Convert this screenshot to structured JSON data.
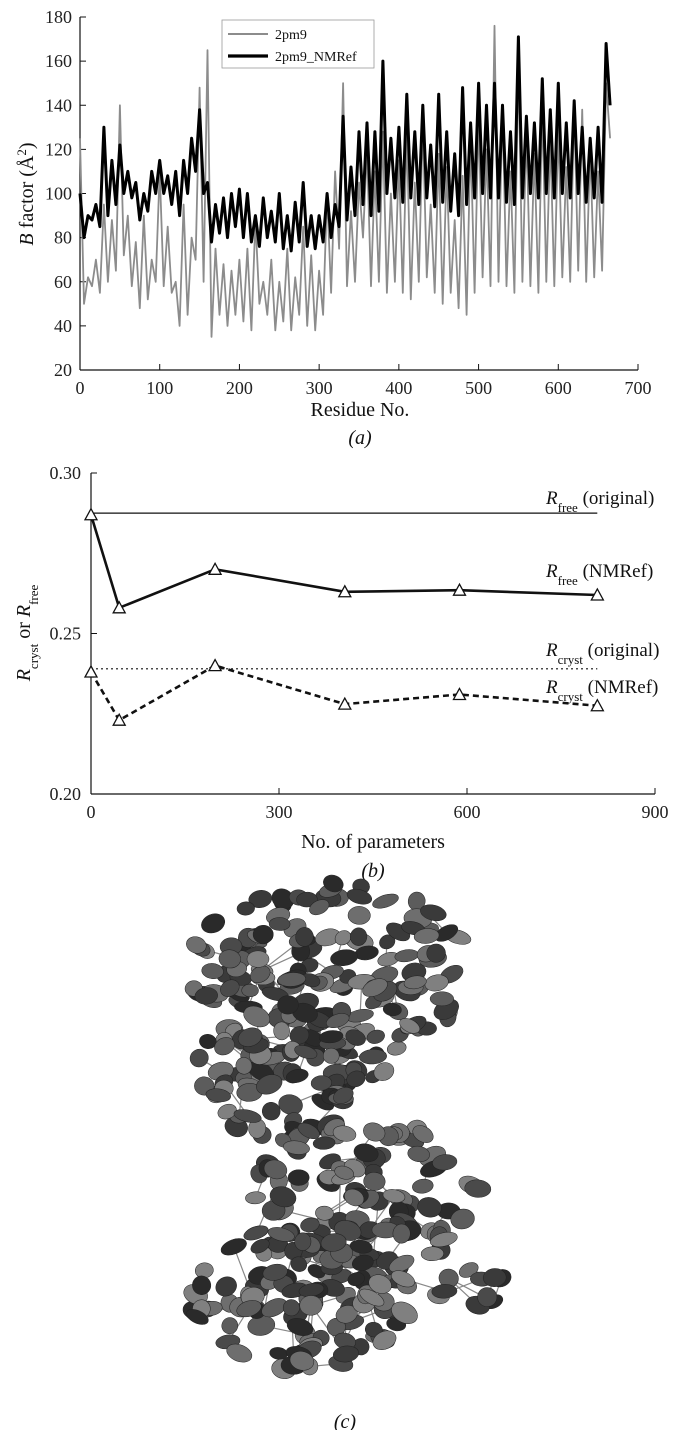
{
  "chart_data": [
    {
      "type": "line",
      "panel": "(a)",
      "xlabel": "Residue No.",
      "ylabel": "B factor (Å²)",
      "xlim": [
        0,
        700
      ],
      "ylim": [
        20,
        180
      ],
      "xticks": [
        0,
        100,
        200,
        300,
        400,
        500,
        600,
        700
      ],
      "yticks": [
        20,
        40,
        60,
        80,
        100,
        120,
        140,
        160,
        180
      ],
      "legend_position": "top-left",
      "series": [
        {
          "name": "2pm9",
          "color": "#8c8c8c",
          "x": [
            0,
            5,
            10,
            15,
            20,
            25,
            30,
            35,
            40,
            45,
            50,
            55,
            60,
            65,
            70,
            75,
            80,
            85,
            90,
            95,
            100,
            105,
            110,
            115,
            120,
            125,
            130,
            135,
            140,
            145,
            150,
            155,
            160,
            165,
            170,
            175,
            180,
            185,
            190,
            195,
            200,
            205,
            210,
            215,
            220,
            225,
            230,
            235,
            240,
            245,
            250,
            255,
            260,
            265,
            270,
            275,
            280,
            285,
            290,
            295,
            300,
            305,
            310,
            315,
            320,
            325,
            330,
            335,
            340,
            345,
            350,
            355,
            360,
            365,
            370,
            375,
            380,
            385,
            390,
            395,
            400,
            405,
            410,
            415,
            420,
            425,
            430,
            435,
            440,
            445,
            450,
            455,
            460,
            465,
            470,
            475,
            480,
            485,
            490,
            495,
            500,
            505,
            510,
            515,
            520,
            525,
            530,
            535,
            540,
            545,
            550,
            555,
            560,
            565,
            570,
            575,
            580,
            585,
            590,
            595,
            600,
            605,
            610,
            615,
            620,
            625,
            630,
            635,
            640,
            645,
            650,
            655,
            660,
            665
          ],
          "values": [
            125,
            50,
            62,
            58,
            70,
            55,
            95,
            60,
            88,
            65,
            140,
            72,
            90,
            58,
            78,
            48,
            90,
            52,
            70,
            60,
            110,
            58,
            85,
            55,
            60,
            40,
            95,
            45,
            80,
            70,
            148,
            60,
            165,
            35,
            75,
            45,
            68,
            40,
            65,
            45,
            70,
            42,
            75,
            38,
            88,
            50,
            60,
            45,
            70,
            38,
            60,
            42,
            75,
            38,
            62,
            45,
            85,
            40,
            72,
            38,
            65,
            45,
            100,
            55,
            110,
            75,
            150,
            58,
            92,
            60,
            105,
            80,
            120,
            58,
            110,
            60,
            128,
            55,
            100,
            60,
            115,
            55,
            128,
            52,
            105,
            60,
            132,
            62,
            95,
            55,
            118,
            50,
            112,
            55,
            88,
            48,
            108,
            45,
            125,
            55,
            135,
            62,
            120,
            58,
            176,
            60,
            140,
            58,
            110,
            55,
            160,
            60,
            128,
            58,
            118,
            55,
            140,
            60,
            125,
            58,
            130,
            62,
            112,
            60,
            140,
            65,
            138,
            60,
            120,
            62,
            110,
            65,
            150,
            125
          ]
        },
        {
          "name": "2pm9_NMRef",
          "color": "#000000",
          "x": [
            0,
            5,
            10,
            15,
            20,
            25,
            30,
            35,
            40,
            45,
            50,
            55,
            60,
            65,
            70,
            75,
            80,
            85,
            90,
            95,
            100,
            105,
            110,
            115,
            120,
            125,
            130,
            135,
            140,
            145,
            150,
            155,
            160,
            165,
            170,
            175,
            180,
            185,
            190,
            195,
            200,
            205,
            210,
            215,
            220,
            225,
            230,
            235,
            240,
            245,
            250,
            255,
            260,
            265,
            270,
            275,
            280,
            285,
            290,
            295,
            300,
            305,
            310,
            315,
            320,
            325,
            330,
            335,
            340,
            345,
            350,
            355,
            360,
            365,
            370,
            375,
            380,
            385,
            390,
            395,
            400,
            405,
            410,
            415,
            420,
            425,
            430,
            435,
            440,
            445,
            450,
            455,
            460,
            465,
            470,
            475,
            480,
            485,
            490,
            495,
            500,
            505,
            510,
            515,
            520,
            525,
            530,
            535,
            540,
            545,
            550,
            555,
            560,
            565,
            570,
            575,
            580,
            585,
            590,
            595,
            600,
            605,
            610,
            615,
            620,
            625,
            630,
            635,
            640,
            645,
            650,
            655,
            660,
            665
          ],
          "values": [
            100,
            80,
            90,
            88,
            95,
            85,
            130,
            90,
            115,
            95,
            122,
            100,
            110,
            98,
            105,
            88,
            100,
            92,
            110,
            100,
            115,
            100,
            108,
            95,
            110,
            90,
            115,
            100,
            125,
            110,
            138,
            100,
            105,
            78,
            95,
            82,
            98,
            80,
            100,
            85,
            102,
            80,
            100,
            78,
            90,
            76,
            98,
            80,
            92,
            78,
            100,
            75,
            90,
            74,
            96,
            78,
            105,
            76,
            90,
            75,
            90,
            78,
            100,
            80,
            95,
            85,
            135,
            88,
            112,
            90,
            128,
            95,
            132,
            90,
            128,
            92,
            160,
            100,
            125,
            98,
            130,
            96,
            145,
            98,
            128,
            95,
            140,
            98,
            122,
            94,
            145,
            96,
            128,
            92,
            118,
            90,
            148,
            95,
            132,
            98,
            150,
            100,
            140,
            98,
            150,
            98,
            140,
            96,
            128,
            95,
            171,
            98,
            135,
            100,
            132,
            98,
            152,
            100,
            138,
            98,
            150,
            100,
            132,
            98,
            142,
            100,
            130,
            96,
            125,
            98,
            130,
            96,
            168,
            140
          ]
        }
      ]
    },
    {
      "type": "line",
      "panel": "(b)",
      "xlabel": "No. of parameters",
      "ylabel": "Rcryst or Rfree",
      "xlim": [
        0,
        900
      ],
      "ylim": [
        0.2,
        0.3
      ],
      "xticks": [
        0,
        300,
        600,
        900
      ],
      "yticks": [
        "0.20",
        "0.25",
        "0.30"
      ],
      "series": [
        {
          "name": "Rfree (NMRef)",
          "style": "solid",
          "marker": "triangle",
          "x": [
            0,
            45,
            198,
            405,
            588,
            808
          ],
          "values": [
            0.287,
            0.258,
            0.27,
            0.263,
            0.2635,
            0.262
          ]
        },
        {
          "name": "Rcryst (NMRef)",
          "style": "dashed",
          "marker": "triangle",
          "x": [
            0,
            45,
            198,
            405,
            588,
            808
          ],
          "values": [
            0.238,
            0.223,
            0.24,
            0.228,
            0.231,
            0.2275
          ]
        },
        {
          "name": "Rfree (original)",
          "style": "solid-thin",
          "x": [
            0,
            808
          ],
          "values": [
            0.2875,
            0.2875
          ]
        },
        {
          "name": "Rcryst (original)",
          "style": "dotted",
          "x": [
            0,
            808
          ],
          "values": [
            0.239,
            0.239
          ]
        }
      ],
      "annotations": [
        {
          "main": "R",
          "sub": "free",
          "rest": " (original)"
        },
        {
          "main": "R",
          "sub": "free",
          "rest": " (NMRef)"
        },
        {
          "main": "R",
          "sub": "cryst",
          "rest": " (original)"
        },
        {
          "main": "R",
          "sub": "cryst",
          "rest": " (NMRef)"
        }
      ]
    }
  ],
  "panels": {
    "a_label": "(a)",
    "b_label": "(b)",
    "c_label": "(c)"
  },
  "molecule_colors": [
    "#3a3a3a",
    "#4a4a4a",
    "#5c5c5c",
    "#6e6e6e",
    "#2a2a2a",
    "#808080"
  ]
}
